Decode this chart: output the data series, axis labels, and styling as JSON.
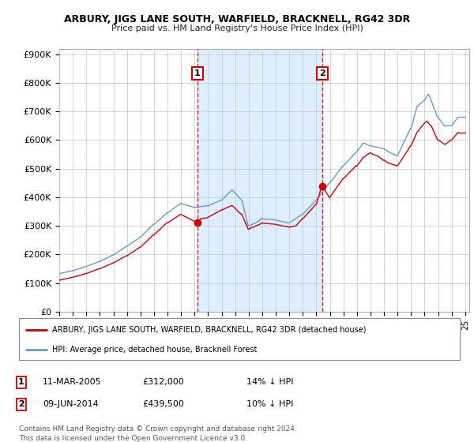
{
  "title": "ARBURY, JIGS LANE SOUTH, WARFIELD, BRACKNELL, RG42 3DR",
  "subtitle": "Price paid vs. HM Land Registry's House Price Index (HPI)",
  "ylabel_ticks": [
    "£0",
    "£100K",
    "£200K",
    "£300K",
    "£400K",
    "£500K",
    "£600K",
    "£700K",
    "£800K",
    "£900K"
  ],
  "ytick_values": [
    0,
    100000,
    200000,
    300000,
    400000,
    500000,
    600000,
    700000,
    800000,
    900000
  ],
  "ylim": [
    0,
    920000
  ],
  "background_color": "#ffffff",
  "plot_bg_color": "#ffffff",
  "grid_color": "#cccccc",
  "shade_color": "#ddeeff",
  "marker1_label": "1",
  "marker1_date": "11-MAR-2005",
  "marker1_price": "£312,000",
  "marker1_hpi": "14% ↓ HPI",
  "marker1_year": 2005.19,
  "marker1_value": 312000,
  "marker2_label": "2",
  "marker2_date": "09-JUN-2014",
  "marker2_price": "£439,500",
  "marker2_hpi": "10% ↓ HPI",
  "marker2_year": 2014.44,
  "marker2_value": 439500,
  "legend_line1": "ARBURY, JIGS LANE SOUTH, WARFIELD, BRACKNELL, RG42 3DR (detached house)",
  "legend_line2": "HPI: Average price, detached house, Bracknell Forest",
  "footer": "Contains HM Land Registry data © Crown copyright and database right 2024.\nThis data is licensed under the Open Government Licence v3.0.",
  "red_color": "#cc0000",
  "blue_color": "#6699cc",
  "xlim_start": 1995,
  "xlim_end": 2025.3
}
